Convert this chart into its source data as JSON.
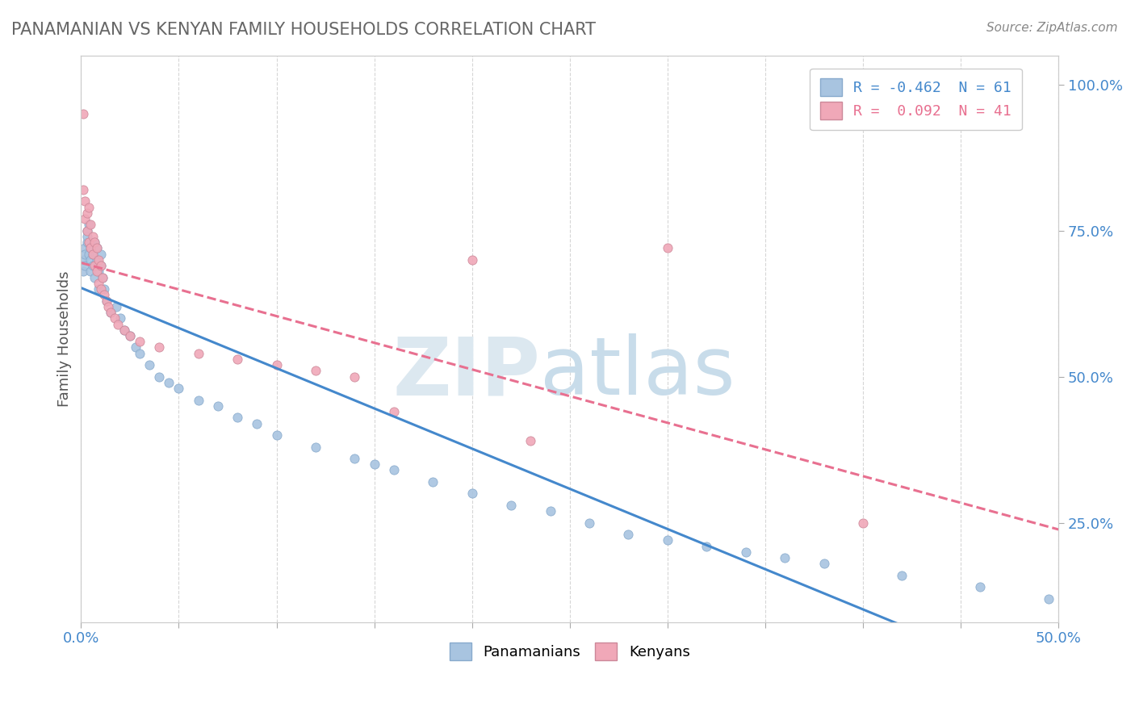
{
  "title": "PANAMANIAN VS KENYAN FAMILY HOUSEHOLDS CORRELATION CHART",
  "source_text": "Source: ZipAtlas.com",
  "ylabel": "Family Households",
  "ytick_labels": [
    "25.0%",
    "50.0%",
    "75.0%",
    "100.0%"
  ],
  "ytick_values": [
    0.25,
    0.5,
    0.75,
    1.0
  ],
  "xlim": [
    0.0,
    0.5
  ],
  "ylim": [
    0.08,
    1.05
  ],
  "legend_blue_label": "R = -0.462  N = 61",
  "legend_pink_label": "R =  0.092  N = 41",
  "blue_color": "#a8c4e0",
  "pink_color": "#f0a8b8",
  "blue_line_color": "#4488cc",
  "pink_line_color": "#e87090",
  "panamanian_x": [
    0.001,
    0.001,
    0.002,
    0.002,
    0.002,
    0.003,
    0.003,
    0.003,
    0.004,
    0.004,
    0.004,
    0.005,
    0.005,
    0.005,
    0.006,
    0.006,
    0.007,
    0.007,
    0.008,
    0.008,
    0.009,
    0.009,
    0.01,
    0.01,
    0.011,
    0.012,
    0.013,
    0.015,
    0.018,
    0.02,
    0.022,
    0.025,
    0.028,
    0.03,
    0.035,
    0.04,
    0.045,
    0.05,
    0.06,
    0.07,
    0.08,
    0.09,
    0.1,
    0.12,
    0.14,
    0.15,
    0.16,
    0.18,
    0.2,
    0.22,
    0.24,
    0.26,
    0.28,
    0.3,
    0.32,
    0.34,
    0.36,
    0.38,
    0.42,
    0.46,
    0.495
  ],
  "panamanian_y": [
    0.7,
    0.68,
    0.72,
    0.69,
    0.71,
    0.73,
    0.75,
    0.74,
    0.71,
    0.73,
    0.76,
    0.72,
    0.7,
    0.68,
    0.71,
    0.69,
    0.73,
    0.67,
    0.7,
    0.72,
    0.68,
    0.65,
    0.71,
    0.69,
    0.67,
    0.65,
    0.63,
    0.61,
    0.62,
    0.6,
    0.58,
    0.57,
    0.55,
    0.54,
    0.52,
    0.5,
    0.49,
    0.48,
    0.46,
    0.45,
    0.43,
    0.42,
    0.4,
    0.38,
    0.36,
    0.35,
    0.34,
    0.32,
    0.3,
    0.28,
    0.27,
    0.25,
    0.23,
    0.22,
    0.21,
    0.2,
    0.19,
    0.18,
    0.16,
    0.14,
    0.12
  ],
  "kenyan_x": [
    0.001,
    0.001,
    0.002,
    0.002,
    0.003,
    0.003,
    0.004,
    0.004,
    0.005,
    0.005,
    0.006,
    0.006,
    0.007,
    0.007,
    0.008,
    0.008,
    0.009,
    0.009,
    0.01,
    0.01,
    0.011,
    0.012,
    0.013,
    0.014,
    0.015,
    0.017,
    0.019,
    0.022,
    0.025,
    0.03,
    0.04,
    0.06,
    0.08,
    0.1,
    0.12,
    0.14,
    0.16,
    0.2,
    0.23,
    0.3,
    0.4
  ],
  "kenyan_y": [
    0.95,
    0.82,
    0.8,
    0.77,
    0.78,
    0.75,
    0.79,
    0.73,
    0.76,
    0.72,
    0.74,
    0.71,
    0.73,
    0.69,
    0.72,
    0.68,
    0.7,
    0.66,
    0.69,
    0.65,
    0.67,
    0.64,
    0.63,
    0.62,
    0.61,
    0.6,
    0.59,
    0.58,
    0.57,
    0.56,
    0.55,
    0.54,
    0.53,
    0.52,
    0.51,
    0.5,
    0.44,
    0.7,
    0.39,
    0.72,
    0.25
  ]
}
